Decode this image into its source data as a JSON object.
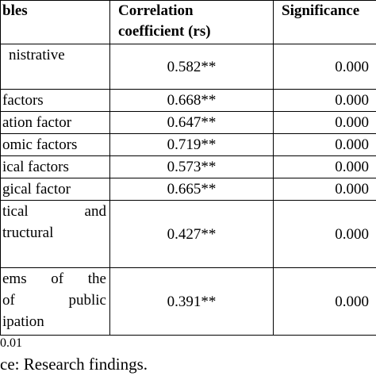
{
  "table": {
    "header": [
      "bles",
      [
        "Correlation",
        "coefficient (rs)"
      ],
      "Significance"
    ],
    "rows": [
      [
        [
          "nistrative"
        ],
        "0.582**",
        "0.000"
      ],
      [
        [
          "factors"
        ],
        "0.668**",
        "0.000"
      ],
      [
        [
          "ation factor"
        ],
        "0.647**",
        "0.000"
      ],
      [
        [
          "omic factors"
        ],
        "0.719**",
        "0.000"
      ],
      [
        [
          "ical factors"
        ],
        "0.573**",
        "0.000"
      ],
      [
        [
          "gical factor"
        ],
        "0.665**",
        "0.000"
      ],
      [
        [
          "tical and",
          "tructural"
        ],
        "0.427**",
        "0.000"
      ],
      [
        [
          "ems of the",
          "of public",
          "ipation"
        ],
        "0.391**",
        "0.000"
      ]
    ]
  },
  "footer": [
    "0.01",
    "ce: Research findings."
  ]
}
